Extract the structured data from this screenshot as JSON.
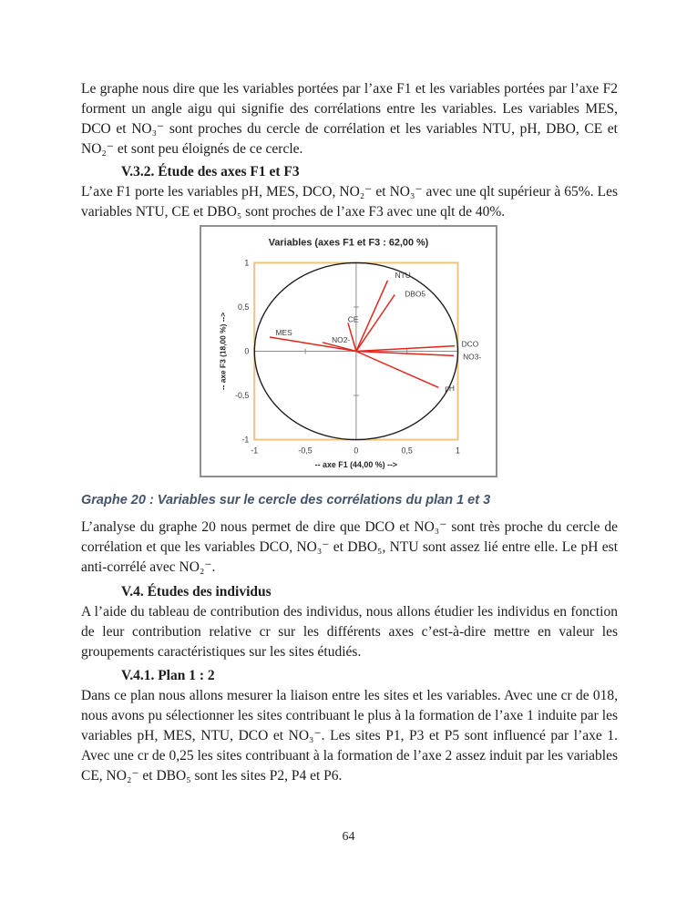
{
  "page": {
    "number": "64"
  },
  "content": {
    "para1": "Le graphe nous dire que les variables portées par l’axe F1 et les variables portées par l’axe F2 forment un angle  aigu qui signifie des corrélations entre les variables. Les variables MES, DCO et NO₃⁻ sont proches du cercle de corrélation et les variables NTU, pH, DBO, CE et NO₂⁻ et sont peu éloignés de ce cercle.",
    "heading_v32": "V.3.2. Étude des axes F1 et F3",
    "para2": "L’axe F1 porte les variables pH, MES, DCO, NO₂⁻ et NO₃⁻ avec une qlt supérieur à 65%. Les variables NTU, CE et DBO₅ sont proches de l’axe F3 avec une qlt de 40%.",
    "caption": "Graphe 20 : Variables sur le cercle des corrélations du plan 1 et 3",
    "para3": "L’analyse du graphe 20 nous permet de dire que DCO et NO₃⁻ sont très proche du cercle de corrélation et que les variables DCO, NO₃⁻ et DBO₅, NTU sont assez lié entre elle. Le pH est anti-corrélé avec NO₂⁻.",
    "heading_v4": "V.4. Études des individus",
    "para4": "A l’aide du tableau de contribution des individus, nous allons étudier les individus en fonction de leur contribution relative cr sur les différents axes c’est-à-dire mettre en valeur les groupements caractéristiques sur les sites étudiés.",
    "heading_v41": "V.4.1. Plan 1 : 2",
    "para5": "Dans ce plan nous allons mesurer la liaison entre les sites et les variables. Avec une cr de 018, nous avons pu sélectionner les sites contribuant le plus à la formation de l’axe 1 induite par les variables pH, MES, NTU, DCO et NO₃⁻. Les sites P1, P3 et P5 sont influencé par l’axe 1. Avec une cr de 0,25 les sites contribuant à la formation de l’axe 2 assez induit par les variables CE, NO₂⁻ et DBO₅ sont les sites P2, P4 et P6."
  },
  "chart_data": {
    "type": "scatter",
    "variant": "pca-correlation-circle-vectors",
    "title": "Variables (axes F1 et F3 : 62,00 %)",
    "xlabel": "-- axe F1 (44,00 %) -->",
    "ylabel": "-- axe F3 (18,00 %) -->",
    "xlim": [
      -1,
      1
    ],
    "ylim": [
      -1,
      1
    ],
    "x_ticks": {
      "values": [
        -1,
        -0.5,
        0,
        0.5,
        1
      ],
      "labels": [
        "-1",
        "-0,5",
        "0",
        "0,5",
        "1"
      ]
    },
    "y_ticks": {
      "values": [
        1,
        0.5,
        0,
        -0.5,
        -1
      ],
      "labels": [
        "1",
        "0,5",
        "0",
        "-0,5",
        "-1"
      ]
    },
    "inner_tick_values": [
      -0.5,
      0.5
    ],
    "circle": {
      "center": [
        0,
        0
      ],
      "radius": 1
    },
    "grid": false,
    "legend": false,
    "vectors": [
      {
        "name": "MES",
        "x": -0.85,
        "y": 0.16,
        "label": {
          "x": -0.71,
          "y": 0.21
        }
      },
      {
        "name": "NO2-",
        "x": -0.33,
        "y": 0.1,
        "label": {
          "x": -0.15,
          "y": 0.13
        }
      },
      {
        "name": "CE",
        "x": -0.08,
        "y": 0.32,
        "label": {
          "x": -0.03,
          "y": 0.36
        }
      },
      {
        "name": "NTU",
        "x": 0.31,
        "y": 0.8,
        "label": {
          "x": 0.46,
          "y": 0.86
        }
      },
      {
        "name": "DBO5",
        "x": 0.38,
        "y": 0.64,
        "label": {
          "x": 0.58,
          "y": 0.65
        }
      },
      {
        "name": "DCO",
        "x": 0.97,
        "y": 0.06,
        "label": {
          "x": 1.12,
          "y": 0.08
        }
      },
      {
        "name": "NO3-",
        "x": 0.96,
        "y": -0.05,
        "label": {
          "x": 1.14,
          "y": -0.06
        }
      },
      {
        "name": "pH",
        "x": 0.81,
        "y": -0.41,
        "label": {
          "x": 0.92,
          "y": -0.42
        }
      }
    ],
    "colors": {
      "vector": "#e2251c",
      "circle": "#1a1a1a",
      "plot_border": "#f2c27d",
      "axis": "#8c8c8c",
      "tick_text": "#3a3a3a",
      "label_text": "#3a3a3a",
      "title_text": "#262626"
    }
  }
}
